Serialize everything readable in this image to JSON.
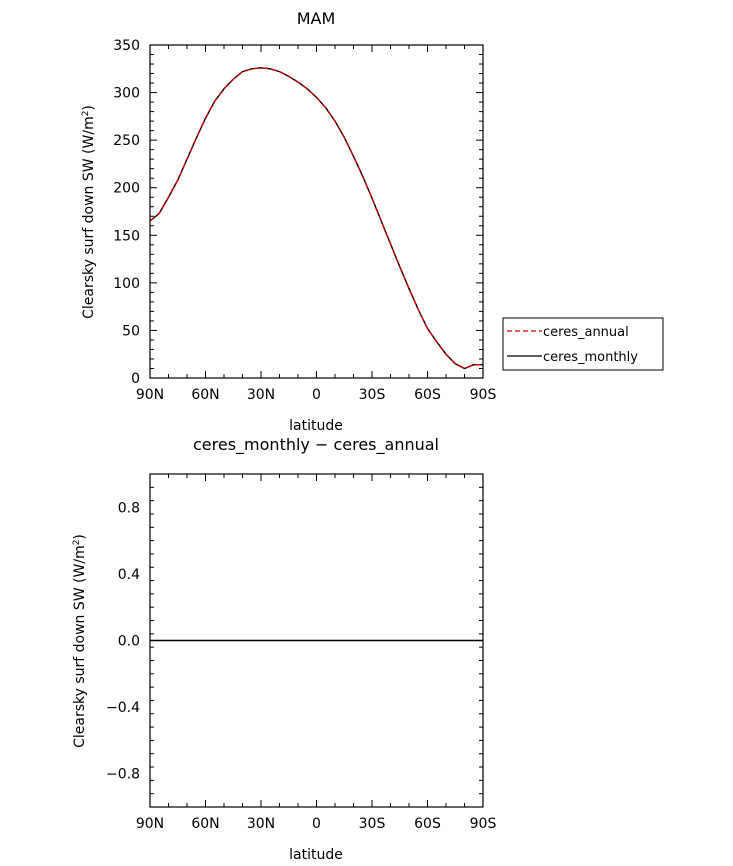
{
  "chart_data": [
    {
      "type": "line",
      "title": "MAM",
      "xlabel": "latitude",
      "ylabel_main": "Clearsky surf down SW (W/m",
      "ylabel_sup": "2",
      "ylabel_close": ")",
      "xticks": [
        {
          "lat": 90,
          "label": "90N"
        },
        {
          "lat": 60,
          "label": "60N"
        },
        {
          "lat": 30,
          "label": "30N"
        },
        {
          "lat": 0,
          "label": "0"
        },
        {
          "lat": -30,
          "label": "30S"
        },
        {
          "lat": -60,
          "label": "60S"
        },
        {
          "lat": -90,
          "label": "90S"
        }
      ],
      "xlim": [
        90,
        -90
      ],
      "ylim": [
        0,
        350
      ],
      "yticks": [
        {
          "v": 0,
          "label": "0"
        },
        {
          "v": 50,
          "label": "50"
        },
        {
          "v": 100,
          "label": "100"
        },
        {
          "v": 150,
          "label": "150"
        },
        {
          "v": 200,
          "label": "200"
        },
        {
          "v": 250,
          "label": "250"
        },
        {
          "v": 300,
          "label": "300"
        },
        {
          "v": 350,
          "label": "350"
        }
      ],
      "legend_placement": "right",
      "series": [
        {
          "name": "ceres_annual",
          "color": "#cc0000",
          "dash": "dashed",
          "x": [
            90,
            85,
            80,
            75,
            70,
            65,
            60,
            55,
            50,
            45,
            40,
            35,
            30,
            25,
            20,
            17,
            15,
            10,
            5,
            0,
            -5,
            -10,
            -15,
            -20,
            -25,
            -30,
            -35,
            -40,
            -45,
            -50,
            -55,
            -60,
            -65,
            -70,
            -75,
            -80,
            -85,
            -90
          ],
          "y": [
            165,
            173,
            190,
            208,
            230,
            252,
            273,
            291,
            304,
            314,
            322,
            325,
            326,
            325,
            322,
            319,
            317,
            311,
            304,
            295,
            284,
            270,
            253,
            233,
            212,
            189,
            165,
            141,
            117,
            94,
            72,
            52,
            38,
            25,
            15,
            10,
            14,
            14
          ]
        },
        {
          "name": "ceres_monthly",
          "color": "#000000",
          "dash": "solid",
          "x": [
            90,
            85,
            80,
            75,
            70,
            65,
            60,
            55,
            50,
            45,
            40,
            35,
            30,
            25,
            20,
            17,
            15,
            10,
            5,
            0,
            -5,
            -10,
            -15,
            -20,
            -25,
            -30,
            -35,
            -40,
            -45,
            -50,
            -55,
            -60,
            -65,
            -70,
            -75,
            -80,
            -85,
            -90
          ],
          "y": [
            165,
            173,
            190,
            208,
            230,
            252,
            273,
            291,
            304,
            314,
            322,
            325,
            326,
            325,
            322,
            319,
            317,
            311,
            304,
            295,
            284,
            270,
            253,
            233,
            212,
            189,
            165,
            141,
            117,
            94,
            72,
            52,
            38,
            25,
            15,
            10,
            14,
            14
          ]
        }
      ]
    },
    {
      "type": "line",
      "title": "ceres_monthly − ceres_annual",
      "xlabel": "latitude",
      "ylabel_main": "Clearsky surf down SW (W/m",
      "ylabel_sup": "2",
      "ylabel_close": ")",
      "xticks": [
        {
          "lat": 90,
          "label": "90N"
        },
        {
          "lat": 60,
          "label": "60N"
        },
        {
          "lat": 30,
          "label": "30N"
        },
        {
          "lat": 0,
          "label": "0"
        },
        {
          "lat": -30,
          "label": "30S"
        },
        {
          "lat": -60,
          "label": "60S"
        },
        {
          "lat": -90,
          "label": "90S"
        }
      ],
      "xlim": [
        90,
        -90
      ],
      "ylim": [
        -1,
        1
      ],
      "yticks": [
        {
          "v": -0.8,
          "label": "−0.8"
        },
        {
          "v": -0.4,
          "label": "−0.4"
        },
        {
          "v": 0.0,
          "label": "0.0"
        },
        {
          "v": 0.4,
          "label": "0.4"
        },
        {
          "v": 0.8,
          "label": "0.8"
        }
      ],
      "series": [
        {
          "color": "#000000",
          "x": [
            90,
            -90
          ],
          "y": [
            0,
            0
          ]
        }
      ]
    }
  ]
}
